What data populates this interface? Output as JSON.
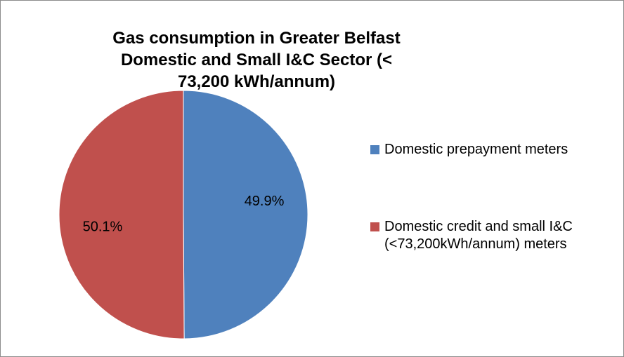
{
  "chart_data": {
    "type": "pie",
    "title": "Gas consumption in Greater Belfast Domestic and Small I&C Sector (< 73,200 kWh/annum)",
    "categories": [
      "Domestic prepayment meters",
      "Domestic credit and small I&C (<73,200kWh/annum) meters"
    ],
    "values": [
      49.9,
      50.1
    ],
    "value_labels": [
      "49.9%",
      "50.1%"
    ],
    "colors": [
      "#4f81bd",
      "#c0504d"
    ],
    "legend": "right"
  }
}
